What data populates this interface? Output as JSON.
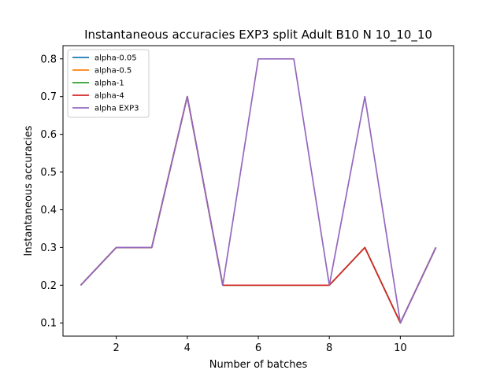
{
  "chart_data": {
    "type": "line",
    "title": "Instantaneous accuracies EXP3 split Adult B10 N 10_10_10",
    "xlabel": "Number of batches",
    "ylabel": "Instantaneous accuracies",
    "xlim": [
      0.5,
      11.5
    ],
    "ylim": [
      0.065,
      0.835
    ],
    "xticks": [
      2,
      4,
      6,
      8,
      10
    ],
    "yticks": [
      0.1,
      0.2,
      0.3,
      0.4,
      0.5,
      0.6,
      0.7,
      0.8
    ],
    "x": [
      1,
      2,
      3,
      4,
      5,
      6,
      7,
      8,
      9,
      10,
      11
    ],
    "legend_position": "top-left",
    "grid": false,
    "series": [
      {
        "name": "alpha-0.05",
        "color": "#1f77b4",
        "values": [
          0.2,
          0.3,
          0.3,
          0.7,
          0.2,
          0.2,
          0.2,
          0.2,
          0.3,
          0.1,
          0.3
        ]
      },
      {
        "name": "alpha-0.5",
        "color": "#ff7f0e",
        "values": [
          0.2,
          0.3,
          0.3,
          0.7,
          0.2,
          0.2,
          0.2,
          0.2,
          0.3,
          0.1,
          0.3
        ]
      },
      {
        "name": "alpha-1",
        "color": "#2ca02c",
        "values": [
          0.2,
          0.3,
          0.3,
          0.7,
          0.2,
          0.2,
          0.2,
          0.2,
          0.3,
          0.1,
          0.3
        ]
      },
      {
        "name": "alpha-4",
        "color": "#d62728",
        "values": [
          0.2,
          0.3,
          0.3,
          0.7,
          0.2,
          0.2,
          0.2,
          0.2,
          0.3,
          0.1,
          0.3
        ]
      },
      {
        "name": "alpha EXP3",
        "color": "#9467bd",
        "values": [
          0.2,
          0.3,
          0.3,
          0.7,
          0.2,
          0.8,
          0.8,
          0.2,
          0.7,
          0.1,
          0.3
        ]
      }
    ]
  }
}
